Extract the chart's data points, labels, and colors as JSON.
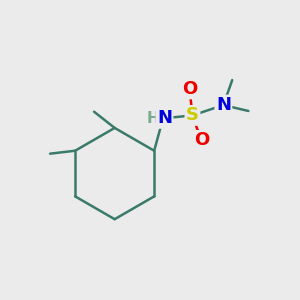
{
  "bg_color": "#ebebeb",
  "bond_color": "#3a7a6a",
  "bond_width": 1.8,
  "atom_colors": {
    "C": "#3a7a6a",
    "N": "#0000dd",
    "NH": "#0000dd",
    "H": "#7aaa90",
    "S": "#cccc00",
    "O": "#ee0000"
  },
  "font_size_atom": 13,
  "font_size_h": 11
}
